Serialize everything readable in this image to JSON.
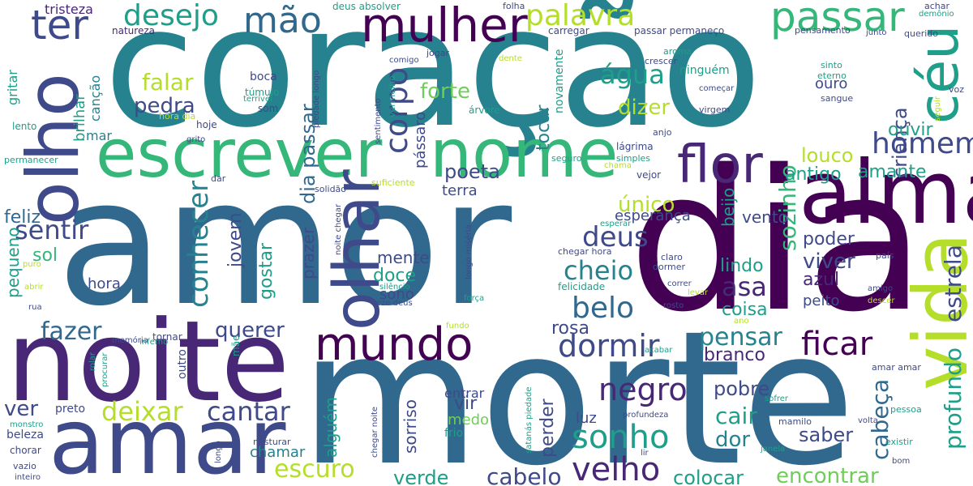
{
  "palette": [
    "#440154",
    "#482777",
    "#3e4a89",
    "#31688e",
    "#26828e",
    "#1f9e89",
    "#35b779",
    "#6ece58",
    "#b5de2b",
    "#fde725"
  ],
  "words": {
    "coracao": "coração",
    "amor": "amor",
    "dia": "dia",
    "morte": "morte",
    "noite": "noite",
    "amar": "amar",
    "olho": "olho",
    "escrever": "escrever",
    "nome": "nome",
    "alma": "alma",
    "vida": "vida",
    "olhar": "olhar",
    "ceu": "céu",
    "mulher": "mulher",
    "passar": "passar",
    "flor": "flor",
    "mundo": "mundo",
    "ter": "ter",
    "mao": "mão",
    "desejo": "desejo",
    "palavra": "palavra",
    "homem": "homem",
    "ficar": "ficar",
    "sonho": "sonho",
    "velho": "velho",
    "negro": "negro",
    "dormir": "dormir",
    "belo": "belo",
    "cheio": "cheio",
    "deus": "deus",
    "agua": "água",
    "corpo": "corpo",
    "conhecer": "conhecer",
    "sentir": "sentir",
    "fazer": "fazer",
    "deixar": "deixar",
    "cantar": "cantar",
    "escuro": "escuro",
    "cabelo": "cabelo",
    "colocar": "colocar",
    "encontrar": "encontrar",
    "verde": "verde",
    "pensar": "pensar",
    "cabeca": "cabeça",
    "profundo": "profundo",
    "estrela": "estrela",
    "sozinho": "sozinho",
    "crianca": "criança",
    "asa": "asa",
    "querer": "querer",
    "falar": "falar",
    "pedra": "pedra",
    "forte": "forte",
    "dizer": "dizer",
    "dia_passar": "dia passar",
    "tocar": "tocar",
    "passaro": "pássaro",
    "poeta": "poeta",
    "jovem": "jovem",
    "gostar": "gostar",
    "unico": "único",
    "louco": "louco",
    "antigo": "antigo",
    "amante": "amante",
    "viver": "viver",
    "azul": "azul",
    "poder": "poder",
    "ouvir": "ouvir",
    "lindo": "lindo",
    "vento": "vento",
    "beijo": "beijo",
    "esperanca": "esperança",
    "coisa": "coisa",
    "peito": "peito",
    "rosa": "rosa",
    "branco": "branco",
    "cair": "cair",
    "dor": "dor",
    "saber": "saber",
    "pobre": "pobre",
    "perder": "perder",
    "vir": "vir",
    "luz": "luz",
    "sorriso": "sorriso",
    "alguem": "alguém",
    "medo": "medo",
    "entrar": "entrar",
    "frio": "frio",
    "chamar": "chamar",
    "ver": "ver",
    "feliz": "feliz",
    "sol": "sol",
    "pequeno": "pequeno",
    "hora": "hora",
    "mente": "mente",
    "doce": "doce",
    "sono": "sono",
    "prazer": "prazer",
    "terra": "terra",
    "tristeza": "tristeza",
    "natureza": "natureza",
    "gritar": "gritar",
    "brilhar": "brilhar",
    "cancao": "canção",
    "mar": "mar",
    "lento": "lento",
    "permanecer": "permanecer",
    "boca": "boca",
    "tumulo": "túmulo",
    "terrivel": "terrível",
    "som": "som",
    "hoje": "hoje",
    "grito": "grito",
    "hora_dia": "hora dia",
    "dar": "dar",
    "solidao": "solidão",
    "suficiente": "suficiente",
    "deus_absolver": "deus absolver",
    "folha": "folha",
    "achar": "achar",
    "demonio": "demônio",
    "carregar": "carregar",
    "passar_permaneco": "passar permaneço",
    "pensamento": "pensamento",
    "junto": "junto",
    "querido": "querido",
    "jogar": "jogar",
    "comigo": "comigo",
    "vermelho": "vermelho",
    "sentimento": "sentimento",
    "piedade_longo": "piedade longo",
    "dente": "dente",
    "novamente": "novamente",
    "aroma": "aroma",
    "crescer": "crescer",
    "ninguem": "ninguém",
    "arvore": "árvore",
    "comecar": "começar",
    "virgem": "virgem",
    "anjo": "anjo",
    "lagrima": "lágrima",
    "simples": "simples",
    "chama": "chama",
    "seguro": "seguro",
    "vejor": "vejor",
    "sinto": "sinto",
    "eterno": "eterno",
    "ouro": "ouro",
    "sangue": "sangue",
    "voz": "voz",
    "seguir": "seguir",
    "noite_chegar": "noite chegar",
    "longo_miseria": "longo miséria",
    "chegar_hora": "chegar hora",
    "esperar": "esperar",
    "claro": "claro",
    "dormer": "dormer",
    "correr": "correr",
    "levar": "levar",
    "rosto": "rosto",
    "pais": "país",
    "amigo": "amigo",
    "descer": "descer",
    "ano": "ano",
    "felicidade": "felicidade",
    "silencio": "silêncio",
    "reze_deus": "reze deus",
    "forca": "força",
    "fundo": "fundo",
    "inferno": "inferno",
    "memoria": "memória",
    "tornar": "tornar",
    "outro": "outro",
    "mae": "mãe",
    "acabar": "acabar",
    "rolar": "rolar",
    "procurar": "procurar",
    "preto": "preto",
    "beleza": "beleza",
    "monstro": "monstro",
    "chorar": "chorar",
    "vazio": "vazio",
    "inteiro": "inteiro",
    "longo": "longo",
    "misturar": "misturar",
    "chegar_noite": "chegar noite",
    "satanas_piedade": "satanás piedade",
    "profundeza": "profundeza",
    "lir": "lir",
    "janela": "janela",
    "sofrer": "sofrer",
    "mamilo": "mamilo",
    "amar_amar": "amar amar",
    "volta": "volta",
    "pessoa": "pessoa",
    "existir": "existir",
    "bom": "bom",
    "abrir": "abrir",
    "rua": "rua",
    "puro": "puro"
  }
}
